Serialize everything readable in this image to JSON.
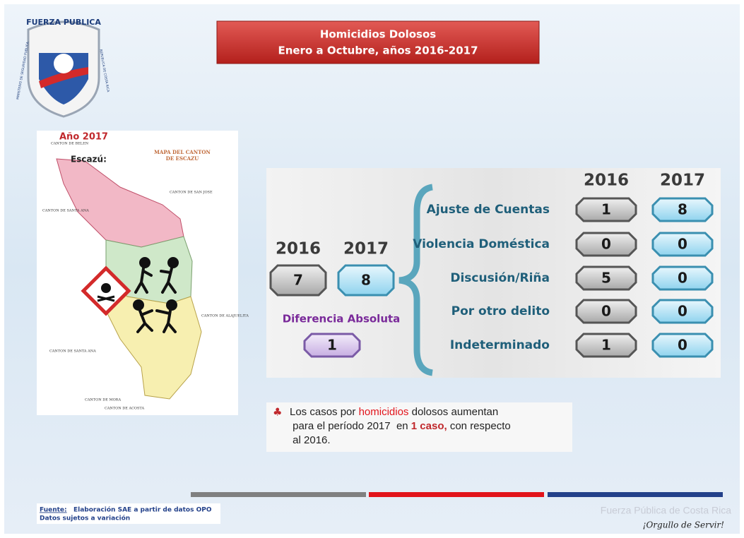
{
  "logo": {
    "top": "FUERZA PUBLICA",
    "left": "MINISTERIO DE SEGURIDAD PUBLICA",
    "right": "REPUBLICA DE COSTA RICA"
  },
  "header": {
    "title": "Homicidios Dolosos",
    "subtitle": "Enero a Octubre, años 2016-2017"
  },
  "map": {
    "year": "Año 2017",
    "canton": "Escazú:",
    "map_title": [
      "MAPA DEL CANTON",
      "DE ESCAZU"
    ],
    "places": [
      "CANTON DE BELEN",
      "CANTON DE SAN JOSE",
      "CANTON DE SANTA ANA",
      "CANTON DE ALAJUELITA",
      "CANTON DE SANTA ANA",
      "CANTON DE MORA",
      "CANTON DE ACOSTA"
    ]
  },
  "totals": {
    "years": [
      "2016",
      "2017"
    ],
    "values": [
      7,
      8
    ],
    "difference_label": "Diferencia Absoluta",
    "difference": 1
  },
  "table": {
    "columns": [
      "2016",
      "2017"
    ],
    "rows": [
      [
        "Ajuste de Cuentas",
        1,
        8
      ],
      [
        "Violencia Doméstica",
        0,
        0
      ],
      [
        "Discusión/Riña",
        5,
        0
      ],
      [
        "Por otro delito",
        0,
        0
      ],
      [
        "Indeterminado",
        1,
        0
      ]
    ]
  },
  "note": [
    "Los casos por ",
    "homicidios",
    " dolosos aumentan para el período 2017  en ",
    "1 caso,",
    " con respecto al 2016."
  ],
  "footer": {
    "source_label": "Fuente:",
    "source": "Elaboración SAE a partir de datos OPO",
    "disclaimer": "Datos sujetos a variación",
    "brand": "Fuerza Pública de Costa Rica",
    "motto": "¡Orgullo de Servir!"
  }
}
